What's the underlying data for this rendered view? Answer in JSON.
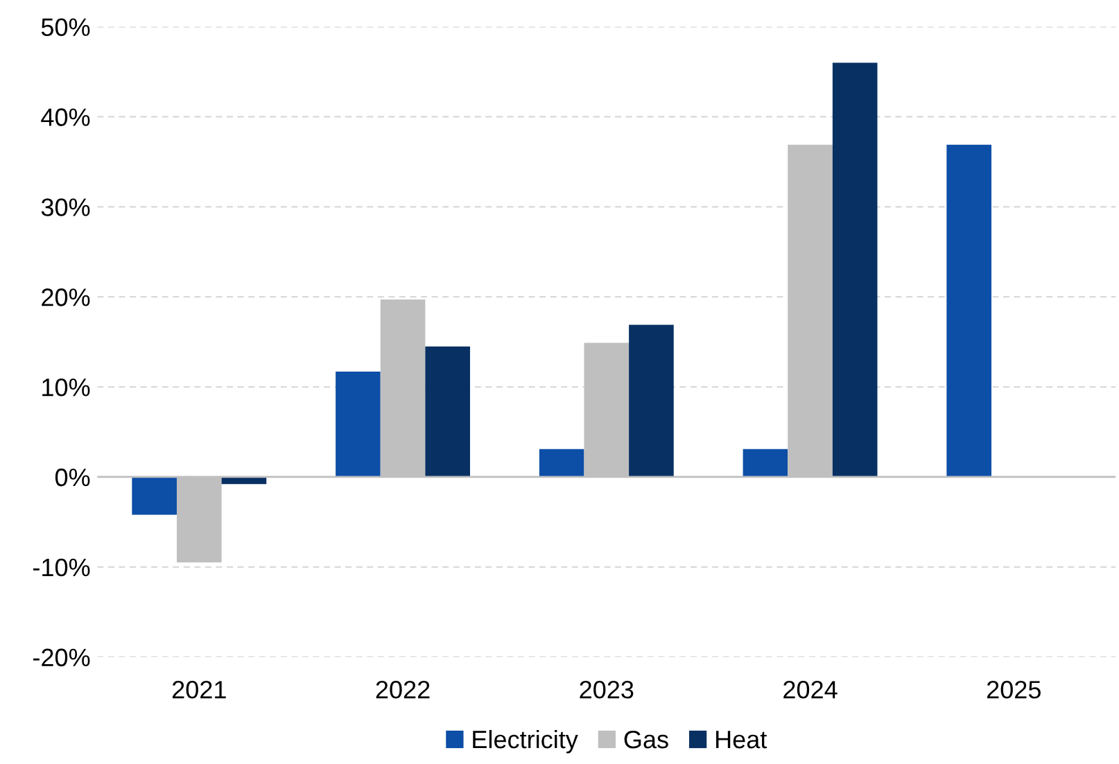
{
  "chart_data": {
    "type": "bar",
    "categories": [
      "2021",
      "2022",
      "2023",
      "2024",
      "2025"
    ],
    "series": [
      {
        "name": "Electricity",
        "color": "#0d4ea6",
        "values": [
          -4.2,
          11.7,
          3.1,
          3.1,
          36.9
        ]
      },
      {
        "name": "Gas",
        "color": "#bfbfbf",
        "values": [
          -9.5,
          19.7,
          14.9,
          36.9,
          null
        ]
      },
      {
        "name": "Heat",
        "color": "#083063",
        "values": [
          -0.8,
          14.5,
          16.9,
          46.0,
          null
        ]
      }
    ],
    "ylim": [
      -20,
      50
    ],
    "yticks": [
      {
        "value": -20,
        "label": "-20%"
      },
      {
        "value": -10,
        "label": "-10%"
      },
      {
        "value": 0,
        "label": "0%"
      },
      {
        "value": 10,
        "label": "10%"
      },
      {
        "value": 20,
        "label": "20%"
      },
      {
        "value": 30,
        "label": "30%"
      },
      {
        "value": 40,
        "label": "40%"
      },
      {
        "value": 50,
        "label": "50%"
      }
    ],
    "grid": "y",
    "legend": "bottom"
  }
}
